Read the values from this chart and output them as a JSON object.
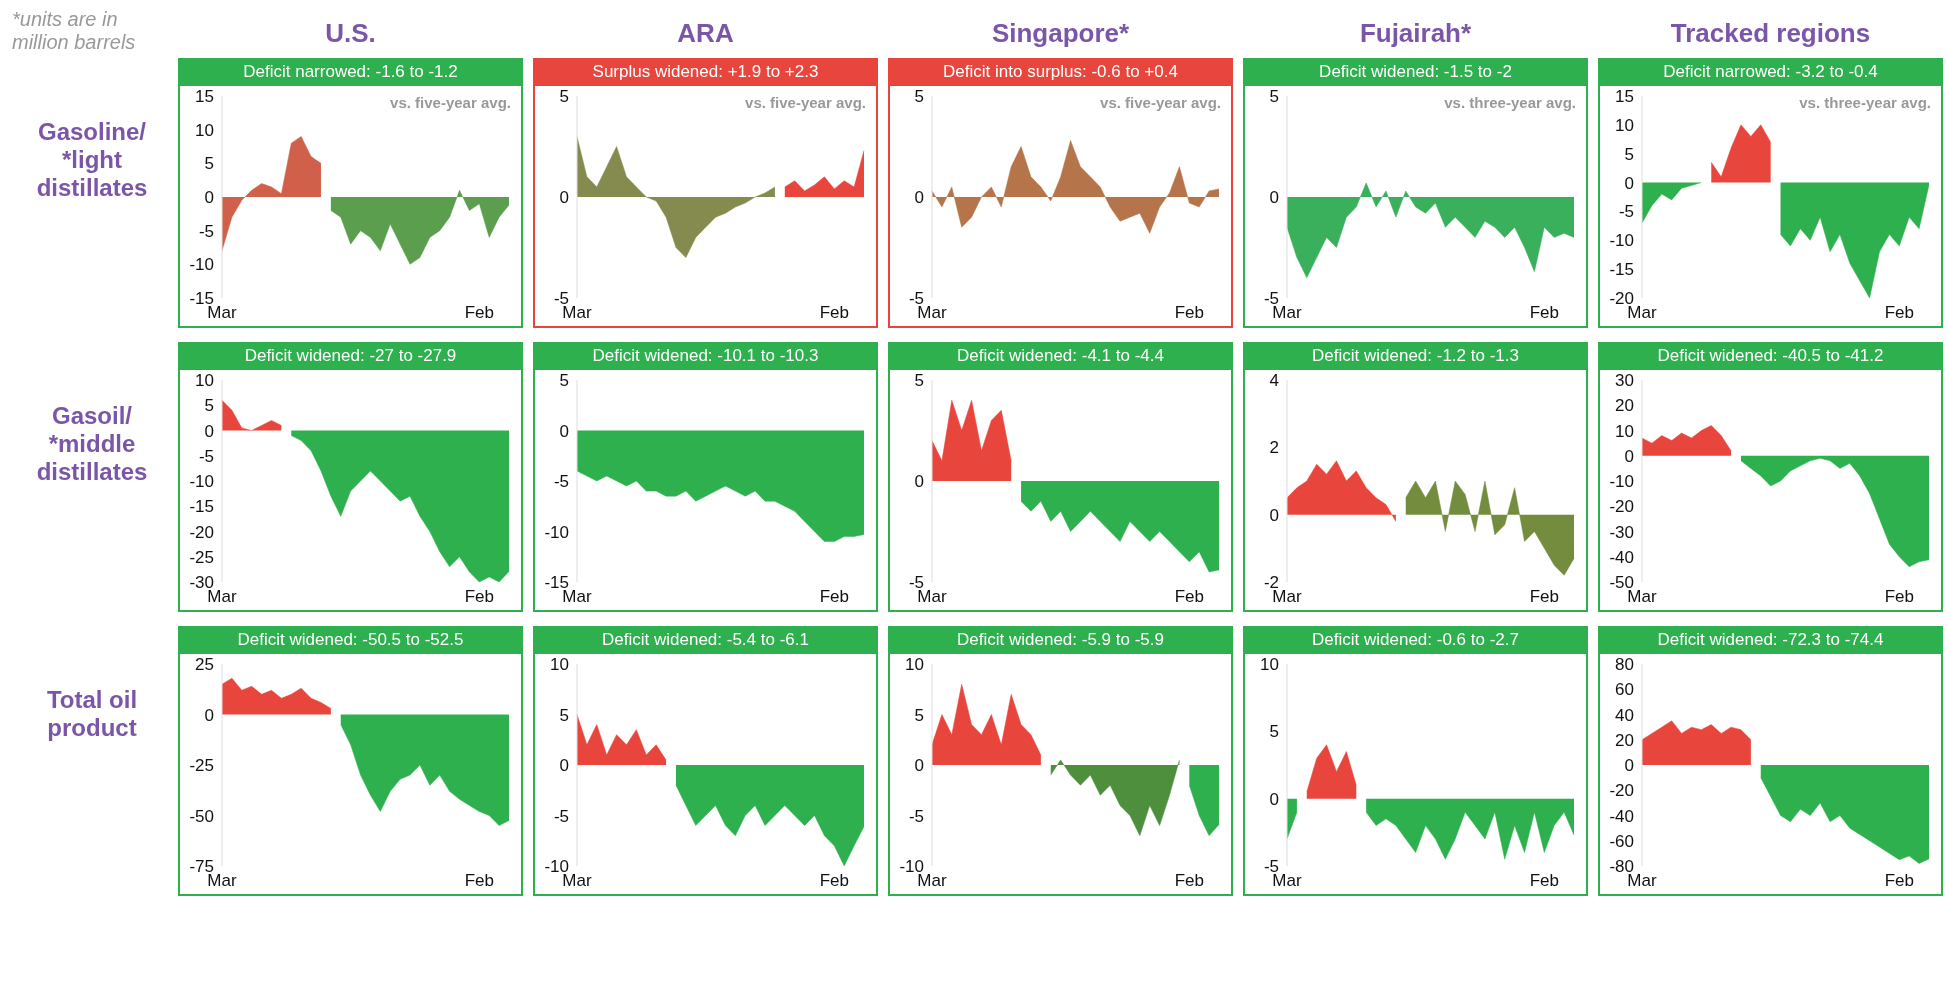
{
  "chart_data": [
    {
      "type": "area",
      "title": "U.S.",
      "subtitle": "Deficit narrowed: -1.6 to -1.2",
      "ylabel": "Gasoline/ *light distillates",
      "annotations": [
        "vs. five-year avg.",
        "*units are in million barrels"
      ],
      "categories": [
        "Mar",
        null,
        null,
        null,
        null,
        null,
        null,
        null,
        null,
        null,
        null,
        null,
        null,
        null,
        null,
        null,
        null,
        null,
        null,
        null,
        null,
        null,
        null,
        null,
        null,
        null,
        "Feb",
        null,
        null,
        null
      ],
      "ylim": [
        -15,
        15
      ],
      "yticks": [
        -15,
        -10,
        -5,
        0,
        5,
        10,
        15
      ],
      "series": [
        {
          "color": "#d0604a",
          "values": [
            -8,
            -3,
            -0.5,
            1,
            2,
            1.5,
            0.5,
            8,
            9,
            6,
            5,
            null,
            null,
            null,
            null,
            null,
            null,
            null,
            null,
            null,
            null,
            null,
            null,
            null,
            null,
            null,
            null,
            null,
            null,
            null
          ]
        },
        {
          "color": "#5a9e4e",
          "values": [
            null,
            null,
            null,
            null,
            null,
            null,
            null,
            null,
            null,
            null,
            null,
            -2,
            -3,
            -7,
            -5,
            -6,
            -8,
            -4,
            -7,
            -10,
            -9,
            -6,
            -5,
            -3,
            1,
            -2,
            -1,
            -6,
            -3,
            -1.2
          ]
        }
      ]
    },
    {
      "type": "area",
      "title": "ARA",
      "subtitle": "Surplus widened: +1.9 to +2.3",
      "annotations": [
        "vs. five-year avg."
      ],
      "categories": [
        "Mar",
        null,
        null,
        null,
        null,
        null,
        null,
        null,
        null,
        null,
        null,
        null,
        null,
        null,
        null,
        null,
        null,
        null,
        null,
        null,
        null,
        null,
        null,
        null,
        null,
        null,
        "Feb",
        null,
        null,
        null
      ],
      "ylim": [
        -5,
        5
      ],
      "yticks": [
        -5,
        0,
        5
      ],
      "series": [
        {
          "color": "#858a4e",
          "values": [
            3,
            1,
            0.5,
            1.5,
            2.5,
            1,
            0.5,
            0,
            -0.2,
            -1,
            -2.5,
            -3,
            -2,
            -1.5,
            -1,
            -0.8,
            -0.5,
            -0.3,
            0,
            0.2,
            0.5,
            null,
            null,
            null,
            null,
            null,
            null,
            null,
            null,
            null
          ]
        },
        {
          "color": "#e8453c",
          "values": [
            null,
            null,
            null,
            null,
            null,
            null,
            null,
            null,
            null,
            null,
            null,
            null,
            null,
            null,
            null,
            null,
            null,
            null,
            null,
            null,
            null,
            0.5,
            0.8,
            0.3,
            0.6,
            1,
            0.4,
            0.8,
            0.5,
            2.3
          ]
        }
      ]
    },
    {
      "type": "area",
      "title": "Singapore*",
      "subtitle": "Deficit into surplus: -0.6 to +0.4",
      "annotations": [
        "vs. five-year avg."
      ],
      "categories": [
        "Mar",
        null,
        null,
        null,
        null,
        null,
        null,
        null,
        null,
        null,
        null,
        null,
        null,
        null,
        null,
        null,
        null,
        null,
        null,
        null,
        null,
        null,
        null,
        null,
        null,
        null,
        "Feb",
        null,
        null,
        null
      ],
      "ylim": [
        -5,
        5
      ],
      "yticks": [
        -5,
        0,
        5
      ],
      "series": [
        {
          "color": "#b5744a",
          "values": [
            0.3,
            -0.5,
            0.5,
            -1.5,
            -1,
            0,
            0.5,
            -0.5,
            1.5,
            2.5,
            1,
            0.5,
            -0.2,
            1,
            2.8,
            1.5,
            1,
            0.5,
            -0.5,
            -1.2,
            -1,
            -0.8,
            -1.8,
            -0.5,
            0.2,
            1.5,
            -0.3,
            -0.5,
            0.3,
            0.4
          ]
        }
      ]
    },
    {
      "type": "area",
      "title": "Fujairah*",
      "subtitle": "Deficit widened: -1.5 to -2",
      "annotations": [
        "vs. three-year avg."
      ],
      "categories": [
        "Mar",
        null,
        null,
        null,
        null,
        null,
        null,
        null,
        null,
        null,
        null,
        null,
        null,
        null,
        null,
        null,
        null,
        null,
        null,
        null,
        null,
        null,
        null,
        null,
        null,
        null,
        "Feb",
        null,
        null,
        null
      ],
      "ylim": [
        -5,
        5
      ],
      "yticks": [
        -5,
        0,
        5
      ],
      "series": [
        {
          "color": "#3aaf5c",
          "values": [
            -1.5,
            -3,
            -4,
            -3,
            -2,
            -2.5,
            -1,
            -0.5,
            0.7,
            -0.5,
            0.3,
            -1,
            0.3,
            -0.5,
            -0.8,
            -0.3,
            -1.5,
            -1,
            -1.5,
            -2,
            -1.2,
            -1.5,
            -2,
            -1.5,
            -2.5,
            -3.7,
            -1.5,
            -2,
            -1.8,
            -2
          ]
        }
      ]
    },
    {
      "type": "area",
      "title": "Tracked regions",
      "subtitle": "Deficit narrowed: -3.2 to -0.4",
      "annotations": [
        "vs. three-year avg."
      ],
      "categories": [
        "Mar",
        null,
        null,
        null,
        null,
        null,
        null,
        null,
        null,
        null,
        null,
        null,
        null,
        null,
        null,
        null,
        null,
        null,
        null,
        null,
        null,
        null,
        null,
        null,
        null,
        null,
        "Feb",
        null,
        null,
        null
      ],
      "ylim": [
        -20,
        15
      ],
      "yticks": [
        -20,
        -15,
        -10,
        -5,
        0,
        5,
        10,
        15
      ],
      "series": [
        {
          "color": "#e8453c",
          "values": [
            null,
            null,
            null,
            null,
            null,
            null,
            null,
            3.5,
            1,
            6,
            10,
            8,
            10,
            7,
            null,
            null,
            null,
            null,
            null,
            null,
            null,
            null,
            null,
            null,
            null,
            null,
            null,
            null,
            null,
            null
          ]
        },
        {
          "color": "#2eb04f",
          "values": [
            -7,
            -4,
            -2,
            -3,
            -1,
            -0.5,
            0,
            null,
            null,
            null,
            null,
            null,
            null,
            null,
            -9,
            -11,
            -8,
            -10,
            -6,
            -12,
            -9,
            -14,
            -17,
            -20,
            -12,
            -9,
            -11,
            -6,
            -8,
            -0.4
          ]
        }
      ]
    },
    {
      "type": "area",
      "subtitle": "Deficit widened: -27 to -27.9",
      "ylabel": "Gasoil/ *middle distillates",
      "categories": [
        "Mar",
        null,
        null,
        null,
        null,
        null,
        null,
        null,
        null,
        null,
        null,
        null,
        null,
        null,
        null,
        null,
        null,
        null,
        null,
        null,
        null,
        null,
        null,
        null,
        null,
        null,
        "Feb",
        null,
        null,
        null
      ],
      "ylim": [
        -30,
        10
      ],
      "yticks": [
        -30,
        -25,
        -20,
        -15,
        -10,
        -5,
        0,
        5,
        10
      ],
      "series": [
        {
          "color": "#e8453c",
          "values": [
            6,
            4,
            0.5,
            0,
            1,
            2,
            1,
            null,
            null,
            null,
            null,
            null,
            null,
            null,
            null,
            null,
            null,
            null,
            null,
            null,
            null,
            null,
            null,
            null,
            null,
            null,
            null,
            null,
            null,
            null
          ]
        },
        {
          "color": "#2eb04f",
          "values": [
            null,
            null,
            null,
            null,
            null,
            null,
            null,
            -1,
            -2,
            -4,
            -8,
            -13,
            -17,
            -12,
            -10,
            -8,
            -10,
            -12,
            -14,
            -13,
            -17,
            -20,
            -24,
            -27,
            -25,
            -28,
            -30,
            -29,
            -30,
            -27.9
          ]
        }
      ]
    },
    {
      "type": "area",
      "subtitle": "Deficit widened: -10.1 to -10.3",
      "categories": [
        "Mar",
        null,
        null,
        null,
        null,
        null,
        null,
        null,
        null,
        null,
        null,
        null,
        null,
        null,
        null,
        null,
        null,
        null,
        null,
        null,
        null,
        null,
        null,
        null,
        null,
        null,
        "Feb",
        null,
        null,
        null
      ],
      "ylim": [
        -15,
        5
      ],
      "yticks": [
        -15,
        -10,
        -5,
        0,
        5
      ],
      "series": [
        {
          "color": "#2eb04f",
          "values": [
            -4,
            -4.5,
            -5,
            -4.5,
            -5,
            -5.5,
            -5,
            -6,
            -6,
            -6.5,
            -6.5,
            -6,
            -7,
            -6.5,
            -6,
            -5.5,
            -6,
            -6.5,
            -6,
            -7,
            -7,
            -7.5,
            -8,
            -9,
            -10,
            -11,
            -11,
            -10.5,
            -10.5,
            -10.3
          ]
        }
      ]
    },
    {
      "type": "area",
      "subtitle": "Deficit widened: -4.1 to -4.4",
      "categories": [
        "Mar",
        null,
        null,
        null,
        null,
        null,
        null,
        null,
        null,
        null,
        null,
        null,
        null,
        null,
        null,
        null,
        null,
        null,
        null,
        null,
        null,
        null,
        null,
        null,
        null,
        null,
        "Feb",
        null,
        null,
        null
      ],
      "ylim": [
        -5,
        5
      ],
      "yticks": [
        -5,
        0,
        5
      ],
      "series": [
        {
          "color": "#e8453c",
          "values": [
            2,
            1,
            4,
            2.5,
            4,
            1.5,
            3,
            3.5,
            1,
            null,
            null,
            null,
            null,
            null,
            null,
            null,
            null,
            null,
            null,
            null,
            null,
            null,
            null,
            null,
            null,
            null,
            null,
            null,
            null,
            null
          ]
        },
        {
          "color": "#2eb04f",
          "values": [
            null,
            null,
            null,
            null,
            null,
            null,
            null,
            null,
            null,
            -1,
            -1.5,
            -1,
            -2,
            -1.5,
            -2.5,
            -2,
            -1.5,
            -2,
            -2.5,
            -3,
            -2,
            -2.5,
            -3,
            -2.5,
            -3,
            -3.5,
            -4,
            -3.5,
            -4.5,
            -4.4
          ]
        }
      ]
    },
    {
      "type": "area",
      "subtitle": "Deficit widened: -1.2 to -1.3",
      "categories": [
        "Mar",
        null,
        null,
        null,
        null,
        null,
        null,
        null,
        null,
        null,
        null,
        null,
        null,
        null,
        null,
        null,
        null,
        null,
        null,
        null,
        null,
        null,
        null,
        null,
        null,
        null,
        "Feb",
        null,
        null,
        null
      ],
      "ylim": [
        -2,
        4
      ],
      "yticks": [
        -2,
        0,
        2,
        4
      ],
      "series": [
        {
          "color": "#e8453c",
          "values": [
            0.5,
            0.8,
            1,
            1.5,
            1.2,
            1.6,
            1,
            1.3,
            0.8,
            0.5,
            0.3,
            -0.2,
            null,
            null,
            null,
            null,
            null,
            null,
            null,
            null,
            null,
            null,
            null,
            null,
            null,
            null,
            null,
            null,
            null,
            null
          ]
        },
        {
          "color": "#748c3e",
          "values": [
            null,
            null,
            null,
            null,
            null,
            null,
            null,
            null,
            null,
            null,
            null,
            null,
            0.5,
            1,
            0.5,
            1,
            -0.5,
            1,
            0.6,
            -0.5,
            1,
            -0.6,
            -0.3,
            0.8,
            -0.8,
            -0.5,
            -1,
            -1.5,
            -1.8,
            -1.3
          ]
        }
      ]
    },
    {
      "type": "area",
      "subtitle": "Deficit widened: -40.5 to -41.2",
      "categories": [
        "Mar",
        null,
        null,
        null,
        null,
        null,
        null,
        null,
        null,
        null,
        null,
        null,
        null,
        null,
        null,
        null,
        null,
        null,
        null,
        null,
        null,
        null,
        null,
        null,
        null,
        null,
        "Feb",
        null,
        null,
        null
      ],
      "ylim": [
        -50,
        30
      ],
      "yticks": [
        -50,
        -40,
        -30,
        -20,
        -10,
        0,
        10,
        20,
        30
      ],
      "series": [
        {
          "color": "#e8453c",
          "values": [
            7,
            5,
            8,
            6,
            9,
            7,
            10,
            12,
            8,
            2,
            null,
            null,
            null,
            null,
            null,
            null,
            null,
            null,
            null,
            null,
            null,
            null,
            null,
            null,
            null,
            null,
            null,
            null,
            null,
            null
          ]
        },
        {
          "color": "#2eb04f",
          "values": [
            null,
            null,
            null,
            null,
            null,
            null,
            null,
            null,
            null,
            null,
            -2,
            -5,
            -8,
            -12,
            -10,
            -6,
            -4,
            -2,
            -1,
            -2,
            -5,
            -3,
            -8,
            -15,
            -25,
            -35,
            -40,
            -44,
            -42,
            -41.2
          ]
        }
      ]
    },
    {
      "type": "area",
      "subtitle": "Deficit widened: -50.5 to -52.5",
      "ylabel": "Total oil product",
      "categories": [
        "Mar",
        null,
        null,
        null,
        null,
        null,
        null,
        null,
        null,
        null,
        null,
        null,
        null,
        null,
        null,
        null,
        null,
        null,
        null,
        null,
        null,
        null,
        null,
        null,
        null,
        null,
        "Feb",
        null,
        null,
        null
      ],
      "ylim": [
        -75,
        25
      ],
      "yticks": [
        -75,
        -50,
        -25,
        0,
        25
      ],
      "series": [
        {
          "color": "#e8453c",
          "values": [
            15,
            18,
            12,
            14,
            10,
            12,
            8,
            10,
            13,
            8,
            6,
            3,
            null,
            null,
            null,
            null,
            null,
            null,
            null,
            null,
            null,
            null,
            null,
            null,
            null,
            null,
            null,
            null,
            null,
            null
          ]
        },
        {
          "color": "#2eb04f",
          "values": [
            null,
            null,
            null,
            null,
            null,
            null,
            null,
            null,
            null,
            null,
            null,
            null,
            -5,
            -15,
            -30,
            -40,
            -48,
            -38,
            -32,
            -30,
            -25,
            -35,
            -30,
            -38,
            -42,
            -45,
            -48,
            -50,
            -55,
            -52.5
          ]
        }
      ]
    },
    {
      "type": "area",
      "subtitle": "Deficit widened: -5.4 to -6.1",
      "categories": [
        "Mar",
        null,
        null,
        null,
        null,
        null,
        null,
        null,
        null,
        null,
        null,
        null,
        null,
        null,
        null,
        null,
        null,
        null,
        null,
        null,
        null,
        null,
        null,
        null,
        null,
        null,
        "Feb",
        null,
        null,
        null
      ],
      "ylim": [
        -10,
        10
      ],
      "yticks": [
        -10,
        -5,
        0,
        5,
        10
      ],
      "series": [
        {
          "color": "#e8453c",
          "values": [
            5,
            2,
            4,
            1,
            3,
            2,
            3.5,
            1,
            2,
            0.5,
            null,
            null,
            null,
            null,
            null,
            null,
            null,
            null,
            null,
            null,
            null,
            null,
            null,
            null,
            null,
            null,
            null,
            null,
            null,
            null
          ]
        },
        {
          "color": "#2eb04f",
          "values": [
            null,
            null,
            null,
            null,
            null,
            null,
            null,
            null,
            null,
            null,
            -2,
            -4,
            -6,
            -5,
            -4,
            -6,
            -7,
            -5,
            -4,
            -6,
            -5,
            -4,
            -5,
            -6,
            -5,
            -7,
            -8,
            -10,
            -8,
            -6.1
          ]
        }
      ]
    },
    {
      "type": "area",
      "subtitle": "Deficit widened: -5.9 to -5.9",
      "categories": [
        "Mar",
        null,
        null,
        null,
        null,
        null,
        null,
        null,
        null,
        null,
        null,
        null,
        null,
        null,
        null,
        null,
        null,
        null,
        null,
        null,
        null,
        null,
        null,
        null,
        null,
        null,
        "Feb",
        null,
        null,
        null
      ],
      "ylim": [
        -10,
        10
      ],
      "yticks": [
        -10,
        -5,
        0,
        5,
        10
      ],
      "series": [
        {
          "color": "#e8453c",
          "values": [
            2,
            5,
            3,
            8,
            4,
            3,
            5,
            2,
            7,
            4,
            3,
            1,
            null,
            null,
            null,
            null,
            null,
            null,
            null,
            null,
            null,
            null,
            null,
            null,
            null,
            null,
            null,
            null,
            null,
            null
          ]
        },
        {
          "color": "#4e8f3e",
          "values": [
            null,
            null,
            null,
            null,
            null,
            null,
            null,
            null,
            null,
            null,
            null,
            null,
            -1,
            0.5,
            -1,
            -2,
            -1,
            -3,
            -2,
            -4,
            -5,
            -7,
            -4,
            -6,
            -3,
            0.5,
            null,
            null,
            null,
            null
          ]
        },
        {
          "color": "#2eb04f",
          "values": [
            null,
            null,
            null,
            null,
            null,
            null,
            null,
            null,
            null,
            null,
            null,
            null,
            null,
            null,
            null,
            null,
            null,
            null,
            null,
            null,
            null,
            null,
            null,
            null,
            null,
            null,
            -2,
            -5,
            -7,
            -5.9
          ]
        }
      ]
    },
    {
      "type": "area",
      "subtitle": "Deficit widened: -0.6 to -2.7",
      "categories": [
        "Mar",
        null,
        null,
        null,
        null,
        null,
        null,
        null,
        null,
        null,
        null,
        null,
        null,
        null,
        null,
        null,
        null,
        null,
        null,
        null,
        null,
        null,
        null,
        null,
        null,
        null,
        "Feb",
        null,
        null,
        null
      ],
      "ylim": [
        -5,
        10
      ],
      "yticks": [
        -5,
        0,
        5,
        10
      ],
      "series": [
        {
          "color": "#e8453c",
          "values": [
            null,
            null,
            0.5,
            3,
            4,
            2,
            3.5,
            1,
            null,
            null,
            null,
            null,
            null,
            null,
            null,
            null,
            null,
            null,
            null,
            null,
            null,
            null,
            null,
            null,
            null,
            null,
            null,
            null,
            null,
            null
          ]
        },
        {
          "color": "#2eb04f",
          "values": [
            -3,
            -1,
            null,
            null,
            null,
            null,
            null,
            null,
            -1,
            -2,
            -1.5,
            -2,
            -3,
            -4,
            -2,
            -3,
            -4.5,
            -3,
            -1,
            -2,
            -3,
            -1,
            -4.5,
            -2,
            -4,
            -1,
            -4,
            -2,
            -1,
            -2.7
          ]
        }
      ]
    },
    {
      "type": "area",
      "subtitle": "Deficit widened: -72.3 to -74.4",
      "categories": [
        "Mar",
        null,
        null,
        null,
        null,
        null,
        null,
        null,
        null,
        null,
        null,
        null,
        null,
        null,
        null,
        null,
        null,
        null,
        null,
        null,
        null,
        null,
        null,
        null,
        null,
        null,
        "Feb",
        null,
        null,
        null
      ],
      "ylim": [
        -80,
        80
      ],
      "yticks": [
        -80,
        -60,
        -40,
        -20,
        0,
        20,
        40,
        60,
        80
      ],
      "series": [
        {
          "color": "#e8453c",
          "values": [
            20,
            25,
            30,
            35,
            25,
            30,
            28,
            32,
            25,
            30,
            28,
            20,
            null,
            null,
            null,
            null,
            null,
            null,
            null,
            null,
            null,
            null,
            null,
            null,
            null,
            null,
            null,
            null,
            null,
            null
          ]
        },
        {
          "color": "#2eb04f",
          "values": [
            null,
            null,
            null,
            null,
            null,
            null,
            null,
            null,
            null,
            null,
            null,
            null,
            -10,
            -25,
            -40,
            -45,
            -35,
            -40,
            -30,
            -45,
            -40,
            -50,
            -55,
            -60,
            -65,
            -70,
            -75,
            -72,
            -78,
            -74.4
          ]
        }
      ]
    }
  ]
}
